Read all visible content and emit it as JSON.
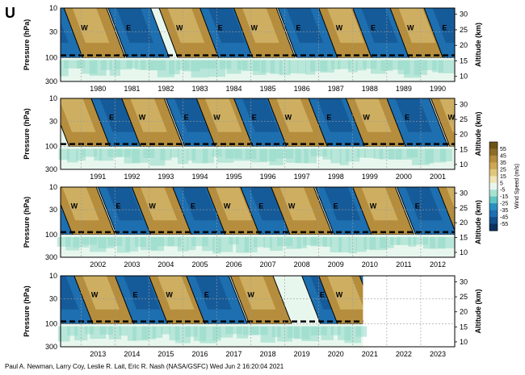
{
  "figure": {
    "panel_label": "U",
    "credit": "Paul A. Newman, Larry Coy, Leslie R. Lait, Eric R. Nash (NASA/GSFC) Wed Jun  2 16:20:04 2021"
  },
  "chart_data": {
    "type": "heatmap",
    "title": "",
    "ylabel": "Pressure (hPa)",
    "y2label": "Altitude (km)",
    "colorbar_label": "Wind Speed (m/s)",
    "pressure_ticks": [
      "10",
      "30",
      "100",
      "300"
    ],
    "altitude_ticks": [
      "30",
      "25",
      "20",
      "15",
      "10"
    ],
    "colorbar_ticks": [
      "55",
      "45",
      "35",
      "25",
      "15",
      "5",
      "-5",
      "-15",
      "-25",
      "-35",
      "-45",
      "-55"
    ],
    "colors": {
      "westerly": "#b58d3c",
      "westerly_light": "#e0c67c",
      "easterly": "#1d6fb0",
      "easterly_dark": "#134f8a",
      "near_zero": "#e8f7ee",
      "weak_easterly": "#8fd8c6",
      "contour": "#000000"
    },
    "rows": [
      {
        "years": [
          "1980",
          "1981",
          "1982",
          "1983",
          "1984",
          "1985",
          "1986",
          "1987",
          "1988",
          "1989",
          "1990"
        ],
        "start": 1979.4,
        "end": 1991.0,
        "data_end": 1991.0,
        "phase_labels": [
          {
            "text": "W",
            "x": 1980.1
          },
          {
            "text": "E",
            "x": 1981.4
          },
          {
            "text": "W",
            "x": 1982.9
          },
          {
            "text": "E",
            "x": 1984.1
          },
          {
            "text": "W",
            "x": 1985.1
          },
          {
            "text": "E",
            "x": 1986.4
          },
          {
            "text": "W",
            "x": 1987.6
          },
          {
            "text": "E",
            "x": 1988.6
          },
          {
            "text": "W",
            "x": 1989.7
          },
          {
            "text": "E",
            "x": 1990.7
          }
        ]
      },
      {
        "years": [
          "1991",
          "1992",
          "1993",
          "1994",
          "1995",
          "1996",
          "1997",
          "1998",
          "1999",
          "2000",
          "2001"
        ],
        "start": 1990.4,
        "end": 2002.0,
        "data_end": 2002.0,
        "phase_labels": [
          {
            "text": "E",
            "x": 1991.9
          },
          {
            "text": "W",
            "x": 1992.8
          },
          {
            "text": "E",
            "x": 1994.1
          },
          {
            "text": "W",
            "x": 1995.0
          },
          {
            "text": "E",
            "x": 1996.1
          },
          {
            "text": "W",
            "x": 1997.1
          },
          {
            "text": "E",
            "x": 1998.3
          },
          {
            "text": "W",
            "x": 1999.4
          },
          {
            "text": "E",
            "x": 2000.6
          },
          {
            "text": "W",
            "x": 2001.9
          }
        ]
      },
      {
        "years": [
          "2002",
          "2003",
          "2004",
          "2005",
          "2006",
          "2007",
          "2008",
          "2009",
          "2010",
          "2011",
          "2012"
        ],
        "start": 2001.4,
        "end": 2013.0,
        "data_end": 2013.0,
        "phase_labels": [
          {
            "text": "W",
            "x": 2001.8
          },
          {
            "text": "E",
            "x": 2003.1
          },
          {
            "text": "W",
            "x": 2004.1
          },
          {
            "text": "E",
            "x": 2005.3
          },
          {
            "text": "W",
            "x": 2006.3
          },
          {
            "text": "E",
            "x": 2007.3
          },
          {
            "text": "W",
            "x": 2008.2
          },
          {
            "text": "E",
            "x": 2009.5
          },
          {
            "text": "W",
            "x": 2010.6
          },
          {
            "text": "E",
            "x": 2011.9
          }
        ]
      },
      {
        "years": [
          "2013",
          "2014",
          "2015",
          "2016",
          "2017",
          "2018",
          "2019",
          "2020",
          "2021",
          "2022",
          "2023"
        ],
        "start": 2012.4,
        "end": 2024.0,
        "data_end": 2021.3,
        "phase_labels": [
          {
            "text": "W",
            "x": 2013.4
          },
          {
            "text": "E",
            "x": 2014.6
          },
          {
            "text": "W",
            "x": 2015.6
          },
          {
            "text": "E",
            "x": 2016.7
          },
          {
            "text": "W",
            "x": 2018.0
          },
          {
            "text": "E",
            "x": 2020.1
          },
          {
            "text": "W",
            "x": 2020.6
          }
        ]
      }
    ]
  }
}
